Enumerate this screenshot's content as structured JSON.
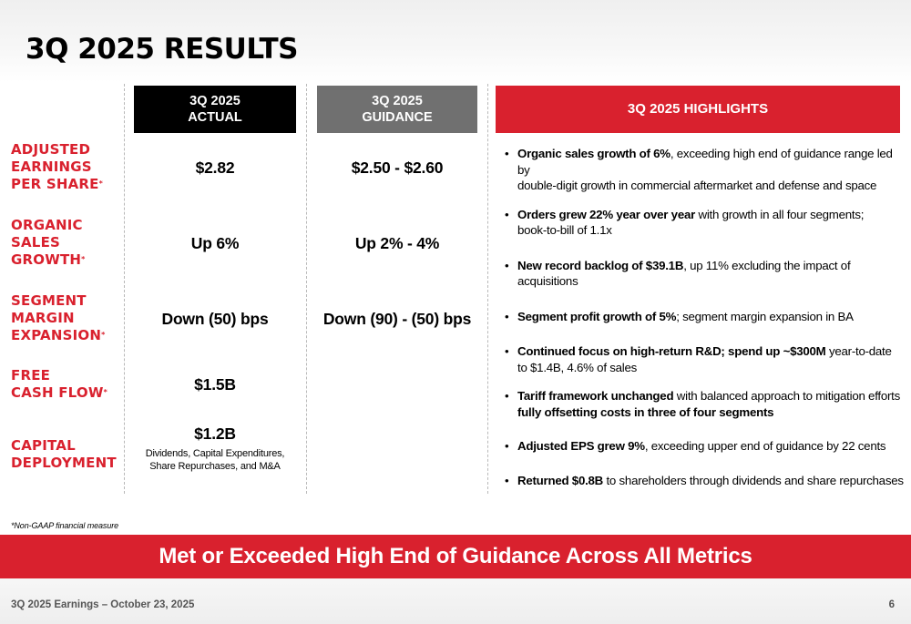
{
  "title": "3Q 2025 RESULTS",
  "headers": {
    "actual_line1": "3Q 2025",
    "actual_line2": "ACTUAL",
    "guidance_line1": "3Q 2025",
    "guidance_line2": "GUIDANCE",
    "highlights": "3Q 2025 HIGHLIGHTS"
  },
  "rows": [
    {
      "label_lines": [
        "ADJUSTED",
        "EARNINGS",
        "PER SHARE"
      ],
      "asterisk": "*",
      "actual": "$2.82",
      "guidance": "$2.50 - $2.60"
    },
    {
      "label_lines": [
        "ORGANIC",
        "SALES",
        "GROWTH"
      ],
      "asterisk": "*",
      "actual": "Up 6%",
      "guidance": "Up 2% - 4%"
    },
    {
      "label_lines": [
        "SEGMENT",
        "MARGIN",
        "EXPANSION"
      ],
      "asterisk": "*",
      "actual": "Down (50) bps",
      "guidance": "Down (90) - (50) bps"
    },
    {
      "label_lines": [
        "FREE",
        "CASH FLOW"
      ],
      "asterisk": "*",
      "actual": "$1.5B",
      "guidance": ""
    },
    {
      "label_lines": [
        "CAPITAL",
        "DEPLOYMENT"
      ],
      "asterisk": "",
      "actual": "$1.2B",
      "actual_sub_line1": "Dividends, Capital Expenditures,",
      "actual_sub_line2": "Share Repurchases, and M&A",
      "guidance": ""
    }
  ],
  "highlights": [
    {
      "bold": "Organic sales growth of 6%",
      "rest1": ", exceeding high end of guidance range led by",
      "line2": "double-digit growth in commercial aftermarket and defense and space"
    },
    {
      "bold": "Orders grew 22% year over year",
      "rest1": " with growth in all four segments;",
      "line2": "book-to-bill of 1.1x"
    },
    {
      "bold": "New record backlog of $39.1B",
      "rest1": ", up 11% excluding the impact of acquisitions",
      "line2": ""
    },
    {
      "bold": "Segment profit growth of 5%",
      "rest1": "; segment margin expansion in BA",
      "line2": ""
    },
    {
      "bold": "Continued focus on high-return R&D; spend up ~$300M",
      "rest1": " year-to-date",
      "line2": "to $1.4B, 4.6% of sales"
    },
    {
      "bold": "Tariff framework unchanged",
      "rest1": " with balanced approach to mitigation efforts",
      "line2_bold": "fully offsetting costs in three of four segments",
      "line2": ""
    },
    {
      "bold": "Adjusted EPS grew 9%",
      "rest1": ", exceeding upper end of guidance by 22 cents",
      "line2": ""
    },
    {
      "bold": "Returned $0.8B",
      "rest1": " to shareholders through dividends and share repurchases",
      "line2": ""
    }
  ],
  "bullet_char": "•",
  "footnote": "*Non-GAAP financial measure",
  "banner": "Met or Exceeded High End of Guidance Across All Metrics",
  "footer": {
    "left": "3Q 2025 Earnings – October 23, 2025",
    "page_number": "6"
  },
  "colors": {
    "accent_red": "#d9212e",
    "actual_header": "#000000",
    "guidance_header": "#707070"
  }
}
